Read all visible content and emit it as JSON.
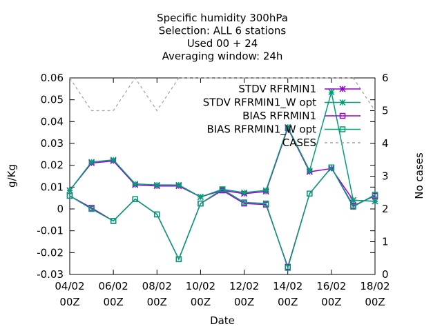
{
  "chart_data": {
    "type": "line",
    "title_lines": [
      "Specific humidity 300hPa",
      "Selection: ALL      6 stations",
      "Used  00 + 24",
      "Averaging window: 24h"
    ],
    "xlabel": "Date",
    "ylabel": "g/Kg",
    "y2label": "No cases",
    "ylim": [
      -0.03,
      0.06
    ],
    "y2lim": [
      0,
      6
    ],
    "yticks": [
      "-0.03",
      "-0.02",
      "-0.01",
      "0",
      "0.01",
      "0.02",
      "0.03",
      "0.04",
      "0.05",
      "0.06"
    ],
    "y2ticks": [
      "0",
      "1",
      "2",
      "3",
      "4",
      "5",
      "6"
    ],
    "xticks": [
      {
        "line1": "04/02",
        "line2": "00Z"
      },
      {
        "line1": "06/02",
        "line2": "00Z"
      },
      {
        "line1": "08/02",
        "line2": "00Z"
      },
      {
        "line1": "10/02",
        "line2": "00Z"
      },
      {
        "line1": "12/02",
        "line2": "00Z"
      },
      {
        "line1": "14/02",
        "line2": "00Z"
      },
      {
        "line1": "16/02",
        "line2": "00Z"
      },
      {
        "line1": "18/02",
        "line2": "00Z"
      }
    ],
    "xlim": [
      0,
      14
    ],
    "x": [
      0,
      1,
      2,
      3,
      4,
      5,
      6,
      7,
      8,
      9,
      10,
      11,
      12,
      13,
      14
    ],
    "legend_position": "top-right",
    "grid": false,
    "series": [
      {
        "name": "STDV RFRMIN1",
        "axis": "y1",
        "color": "#9400d3",
        "dash": "",
        "marker": "star",
        "values": [
          0.0085,
          0.021,
          0.022,
          0.011,
          0.0105,
          0.0105,
          0.0055,
          0.0085,
          0.007,
          0.008,
          0.037,
          0.017,
          0.0185,
          0.004,
          0.0035
        ]
      },
      {
        "name": "STDV RFRMIN1_W opt",
        "axis": "y1",
        "color": "#009e73",
        "dash": "",
        "marker": "star",
        "values": [
          0.0085,
          0.0215,
          0.0225,
          0.0115,
          0.011,
          0.011,
          0.0055,
          0.009,
          0.0075,
          0.0085,
          0.0375,
          0.0175,
          0.0535,
          0.004,
          0.0035
        ]
      },
      {
        "name": "BIAS RFRMIN1",
        "axis": "y1",
        "color": "#9400d3",
        "dash": "",
        "marker": "square",
        "values": [
          0.006,
          0.0005,
          -0.0055,
          0.0045,
          -0.0025,
          -0.023,
          0.0025,
          0.0085,
          0.0025,
          0.002,
          -0.0265,
          0.007,
          0.019,
          0.0015,
          0.006
        ]
      },
      {
        "name": "BIAS RFRMIN1_W opt",
        "axis": "y1",
        "color": "#009e73",
        "dash": "",
        "marker": "square",
        "values": [
          0.006,
          0.0,
          -0.0055,
          0.0045,
          -0.0025,
          -0.023,
          0.0025,
          0.009,
          0.003,
          0.0025,
          -0.027,
          0.007,
          0.019,
          0.001,
          0.0065
        ]
      },
      {
        "name": "CASES",
        "axis": "y2",
        "color": "#a0a0a0",
        "dash": "4,4",
        "marker": "none",
        "values": [
          6,
          5,
          5,
          6,
          5,
          6,
          6,
          6,
          6,
          6,
          6,
          6,
          6,
          6,
          5
        ]
      }
    ]
  }
}
